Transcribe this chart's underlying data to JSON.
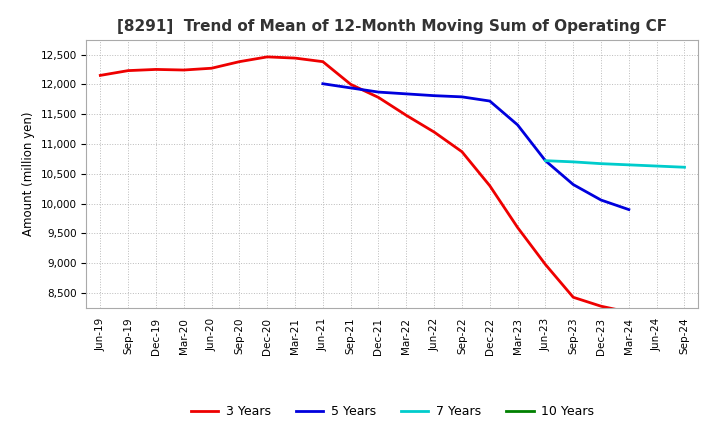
{
  "title": "[8291]  Trend of Mean of 12-Month Moving Sum of Operating CF",
  "ylabel": "Amount (million yen)",
  "ylim": [
    8250,
    12750
  ],
  "yticks": [
    8500,
    9000,
    9500,
    10000,
    10500,
    11000,
    11500,
    12000,
    12500
  ],
  "background_color": "#ffffff",
  "plot_bg_color": "#ffffff",
  "series": {
    "3yr": {
      "color": "#ee0000",
      "label": "3 Years",
      "x": [
        "Jun-19",
        "Sep-19",
        "Dec-19",
        "Mar-20",
        "Jun-20",
        "Sep-20",
        "Dec-20",
        "Mar-21",
        "Jun-21",
        "Sep-21",
        "Dec-21",
        "Mar-22",
        "Jun-22",
        "Sep-22",
        "Dec-22",
        "Mar-23",
        "Jun-23",
        "Sep-23",
        "Dec-23",
        "Mar-24"
      ],
      "y": [
        12150,
        12230,
        12250,
        12240,
        12270,
        12380,
        12460,
        12440,
        12380,
        12000,
        11780,
        11480,
        11200,
        10870,
        10300,
        9600,
        8980,
        8430,
        8280,
        8180
      ]
    },
    "5yr": {
      "color": "#0000dd",
      "label": "5 Years",
      "x": [
        "Jun-21",
        "Sep-21",
        "Dec-21",
        "Mar-22",
        "Jun-22",
        "Sep-22",
        "Dec-22",
        "Mar-23",
        "Jun-23",
        "Sep-23",
        "Dec-23",
        "Mar-24"
      ],
      "y": [
        12010,
        11940,
        11870,
        11840,
        11810,
        11790,
        11720,
        11320,
        10720,
        10320,
        10060,
        9900
      ]
    },
    "7yr": {
      "color": "#00cccc",
      "label": "7 Years",
      "x": [
        "Jun-23",
        "Sep-23",
        "Dec-23",
        "Jun-24",
        "Sep-24"
      ],
      "y": [
        10720,
        10700,
        10670,
        10630,
        10610
      ]
    },
    "10yr": {
      "color": "#008000",
      "label": "10 Years",
      "x": [],
      "y": []
    }
  },
  "all_xticks": [
    "Jun-19",
    "Sep-19",
    "Dec-19",
    "Mar-20",
    "Jun-20",
    "Sep-20",
    "Dec-20",
    "Mar-21",
    "Jun-21",
    "Sep-21",
    "Dec-21",
    "Mar-22",
    "Jun-22",
    "Sep-22",
    "Dec-22",
    "Mar-23",
    "Jun-23",
    "Sep-23",
    "Dec-23",
    "Mar-24",
    "Jun-24",
    "Sep-24"
  ],
  "grid_color": "#bbbbbb",
  "grid_linestyle": ":",
  "grid_linewidth": 0.7,
  "line_width": 2.0,
  "title_fontsize": 11,
  "label_fontsize": 8.5,
  "tick_fontsize": 7.5,
  "legend_fontsize": 9
}
